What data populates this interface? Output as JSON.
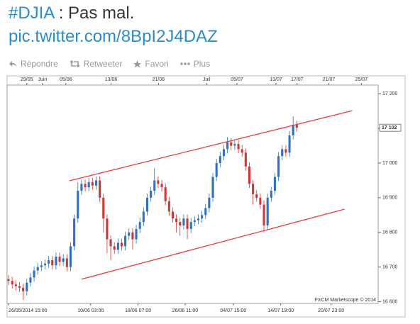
{
  "tweet": {
    "hashtag": "#DJIA",
    "text": " : Pas mal.",
    "link": "pic.twitter.com/8BpI2J4DAZ",
    "actions": [
      "Répondre",
      "Retweeter",
      "Favori",
      "Plus"
    ]
  },
  "chart_data": {
    "type": "candlestick",
    "watermark": "FXCM Marketscope © 2014",
    "up_color": "#2f6fc4",
    "down_color": "#d43434",
    "trend_color": "#e83a3a",
    "xlim": [
      -0.4,
      101.3
    ],
    "ylim": [
      16595,
      17225
    ],
    "yticks": [
      {
        "value": 16600,
        "label": "16 600"
      },
      {
        "value": 16700,
        "label": "16 700"
      },
      {
        "value": 16800,
        "label": "16 800"
      },
      {
        "value": 16900,
        "label": "16 900"
      },
      {
        "value": 17000,
        "label": "17 000"
      },
      {
        "value": 17100,
        "label": "17 100"
      },
      {
        "value": 17200,
        "label": "17 200"
      }
    ],
    "xticks": [
      {
        "value": 0,
        "label": "26/05/2014 15:00"
      },
      {
        "value": 22.5,
        "label": "10/06 03:00"
      },
      {
        "value": 35.5,
        "label": "18/06 07:00"
      },
      {
        "value": 48.4,
        "label": "26/06 11:00"
      },
      {
        "value": 61.6,
        "label": "04/07 15:00"
      },
      {
        "value": 74.6,
        "label": "14/07 19:00"
      },
      {
        "value": 88.4,
        "label": "20/07 23:00"
      }
    ],
    "top_xticks": [
      {
        "value": 5,
        "label": "29/05"
      },
      {
        "value": 9.3,
        "label": "Juin"
      },
      {
        "value": 15.7,
        "label": "05/06"
      },
      {
        "value": 28.1,
        "label": "13/06"
      },
      {
        "value": 41.1,
        "label": "21/06"
      },
      {
        "value": 54.3,
        "label": "Juil"
      },
      {
        "value": 62.6,
        "label": "05/07"
      },
      {
        "value": 73.3,
        "label": "13/07"
      },
      {
        "value": 79.1,
        "label": "17/07"
      },
      {
        "value": 87.8,
        "label": "21/07"
      },
      {
        "value": 96.7,
        "label": "25/07"
      }
    ],
    "last_price": {
      "value": 17102,
      "label": "17 102"
    },
    "open": [
      16665,
      16660,
      16650,
      16645,
      16640,
      16630,
      16655,
      16670,
      16690,
      16700,
      16705,
      16710,
      16720,
      16705,
      16730,
      16715,
      16725,
      16700,
      16760,
      16840,
      16920,
      16940,
      16930,
      16945,
      16935,
      16950,
      16900,
      16840,
      16780,
      16760,
      16750,
      16770,
      16760,
      16790,
      16800,
      16780,
      16810,
      16830,
      16860,
      16900,
      16920,
      16950,
      16940,
      16930,
      16890,
      16860,
      16840,
      16830,
      16820,
      16840,
      16810,
      16830,
      16835,
      16840,
      16850,
      16870,
      16900,
      16960,
      17000,
      17020,
      17040,
      17060,
      17050,
      17055,
      17040,
      17030,
      16990,
      16940,
      16910,
      16900,
      16880,
      16820,
      16900,
      16920,
      16960,
      17020,
      17040,
      17030,
      17080,
      17110
    ],
    "high": [
      16677,
      16672,
      16662,
      16657,
      16652,
      16667,
      16682,
      16702,
      16712,
      16717,
      16722,
      16732,
      16732,
      16742,
      16742,
      16737,
      16737,
      16772,
      16852,
      16945,
      16952,
      16952,
      16957,
      16957,
      16962,
      16962,
      16912,
      16852,
      16792,
      16772,
      16782,
      16782,
      16802,
      16812,
      16812,
      16822,
      16842,
      16872,
      16912,
      16932,
      16985,
      16962,
      16952,
      16942,
      16902,
      16872,
      16852,
      16842,
      16852,
      16852,
      16842,
      16847,
      16852,
      16862,
      16882,
      16912,
      16972,
      17012,
      17032,
      17052,
      17075,
      17072,
      17067,
      17067,
      17052,
      17042,
      17002,
      16952,
      16922,
      16912,
      16892,
      16912,
      16932,
      16972,
      17032,
      17052,
      17052,
      17092,
      17135,
      17122
    ],
    "low": [
      16648,
      16638,
      16633,
      16628,
      16605,
      16618,
      16643,
      16658,
      16678,
      16688,
      16693,
      16698,
      16693,
      16693,
      16703,
      16703,
      16688,
      16688,
      16748,
      16828,
      16908,
      16918,
      16918,
      16923,
      16923,
      16888,
      16800,
      16740,
      16720,
      16738,
      16738,
      16748,
      16748,
      16778,
      16750,
      16768,
      16798,
      16818,
      16848,
      16888,
      16908,
      16928,
      16918,
      16878,
      16848,
      16828,
      16800,
      16790,
      16808,
      16780,
      16798,
      16818,
      16823,
      16828,
      16838,
      16858,
      16888,
      16948,
      16988,
      17008,
      17028,
      17038,
      17038,
      17028,
      17018,
      16978,
      16928,
      16880,
      16888,
      16868,
      16800,
      16808,
      16888,
      16908,
      16948,
      17008,
      17018,
      17018,
      17068,
      17090
    ],
    "close": [
      16660,
      16650,
      16645,
      16640,
      16630,
      16655,
      16670,
      16690,
      16700,
      16705,
      16710,
      16720,
      16705,
      16730,
      16715,
      16725,
      16700,
      16760,
      16840,
      16920,
      16940,
      16930,
      16945,
      16935,
      16950,
      16900,
      16840,
      16780,
      16760,
      16750,
      16770,
      16760,
      16790,
      16800,
      16780,
      16810,
      16830,
      16860,
      16900,
      16920,
      16950,
      16940,
      16930,
      16890,
      16860,
      16840,
      16830,
      16820,
      16840,
      16810,
      16830,
      16835,
      16840,
      16850,
      16870,
      16900,
      16960,
      17000,
      17020,
      17040,
      17060,
      17050,
      17055,
      17040,
      17030,
      16990,
      16940,
      16910,
      16900,
      16880,
      16820,
      16900,
      16920,
      16960,
      17020,
      17040,
      17030,
      17080,
      17110,
      17102
    ],
    "trendlines": [
      {
        "x": [
          16.7,
          94.2
        ],
        "values": [
          16949,
          17151
        ]
      },
      {
        "x": [
          20,
          92.1
        ],
        "values": [
          16665,
          16867
        ]
      }
    ]
  }
}
